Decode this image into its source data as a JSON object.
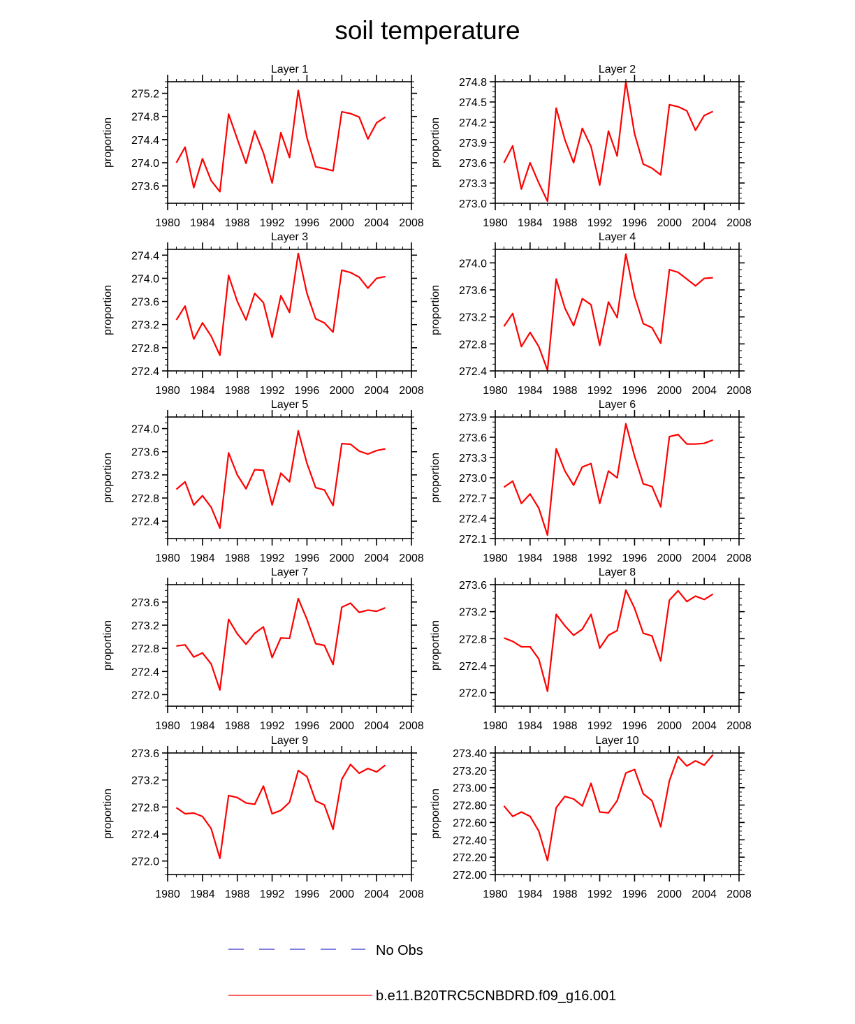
{
  "title": "soil temperature",
  "colors": {
    "model": "#ff0000",
    "obs": "#3333cc",
    "axis": "#000000"
  },
  "legend": {
    "obs_label": "No Obs",
    "model_label": "b.e11.B20TRC5CNBDRD.f09_g16.001"
  },
  "chart_data": [
    {
      "type": "line",
      "title": "Layer 1",
      "xlabel": "",
      "ylabel": "proportion",
      "xlim": [
        1980,
        2008
      ],
      "xticks": [
        "1980",
        "1984",
        "1988",
        "1992",
        "1996",
        "2000",
        "2004",
        "2008"
      ],
      "ylim": [
        273.3,
        275.4
      ],
      "yticks": [
        "273.6",
        "274.0",
        "274.4",
        "274.8",
        "275.2"
      ],
      "x": [
        1981,
        1982,
        1983,
        1984,
        1985,
        1986,
        1987,
        1988,
        1989,
        1990,
        1991,
        1992,
        1993,
        1994,
        1995,
        1996,
        1997,
        1998,
        1999,
        2000,
        2001,
        2002,
        2003,
        2004,
        2005
      ],
      "series": [
        {
          "name": "b.e11.B20TRC5CNBDRD.f09_g16.001",
          "values": [
            274.0,
            274.27,
            273.57,
            274.07,
            273.69,
            273.5,
            274.84,
            274.41,
            273.99,
            274.55,
            274.17,
            273.65,
            274.52,
            274.09,
            275.25,
            274.43,
            273.93,
            273.9,
            273.86,
            274.88,
            274.85,
            274.79,
            274.41,
            274.69,
            274.79
          ]
        }
      ]
    },
    {
      "type": "line",
      "title": "Layer 2",
      "xlabel": "",
      "ylabel": "proportion",
      "xlim": [
        1980,
        2008
      ],
      "xticks": [
        "1980",
        "1984",
        "1988",
        "1992",
        "1996",
        "2000",
        "2004",
        "2008"
      ],
      "ylim": [
        273.0,
        274.8
      ],
      "yticks": [
        "273.0",
        "273.3",
        "273.6",
        "273.9",
        "274.2",
        "274.5",
        "274.8"
      ],
      "x": [
        1981,
        1982,
        1983,
        1984,
        1985,
        1986,
        1987,
        1988,
        1989,
        1990,
        1991,
        1992,
        1993,
        1994,
        1995,
        1996,
        1997,
        1998,
        1999,
        2000,
        2001,
        2002,
        2003,
        2004,
        2005
      ],
      "series": [
        {
          "name": "b.e11.B20TRC5CNBDRD.f09_g16.001",
          "values": [
            273.6,
            273.85,
            273.21,
            273.6,
            273.3,
            273.03,
            274.41,
            273.94,
            273.6,
            274.11,
            273.84,
            273.27,
            274.07,
            273.7,
            274.8,
            274.03,
            273.58,
            273.52,
            273.42,
            274.46,
            274.43,
            274.37,
            274.08,
            274.3,
            274.36
          ]
        }
      ]
    },
    {
      "type": "line",
      "title": "Layer 3",
      "xlabel": "",
      "ylabel": "proportion",
      "xlim": [
        1980,
        2008
      ],
      "xticks": [
        "1980",
        "1984",
        "1988",
        "1992",
        "1996",
        "2000",
        "2004",
        "2008"
      ],
      "ylim": [
        272.4,
        274.5
      ],
      "yticks": [
        "272.4",
        "272.8",
        "273.2",
        "273.6",
        "274.0",
        "274.4"
      ],
      "x": [
        1981,
        1982,
        1983,
        1984,
        1985,
        1986,
        1987,
        1988,
        1989,
        1990,
        1991,
        1992,
        1993,
        1994,
        1995,
        1996,
        1997,
        1998,
        1999,
        2000,
        2001,
        2002,
        2003,
        2004,
        2005
      ],
      "series": [
        {
          "name": "b.e11.B20TRC5CNBDRD.f09_g16.001",
          "values": [
            273.28,
            273.52,
            272.95,
            273.23,
            273.0,
            272.67,
            274.05,
            273.6,
            273.28,
            273.74,
            273.58,
            272.98,
            273.7,
            273.41,
            274.43,
            273.74,
            273.3,
            273.23,
            273.07,
            274.14,
            274.1,
            274.02,
            273.83,
            274.0,
            274.03
          ]
        }
      ]
    },
    {
      "type": "line",
      "title": "Layer 4",
      "xlabel": "",
      "ylabel": "proportion",
      "xlim": [
        1980,
        2008
      ],
      "xticks": [
        "1980",
        "1984",
        "1988",
        "1992",
        "1996",
        "2000",
        "2004",
        "2008"
      ],
      "ylim": [
        272.4,
        274.2
      ],
      "yticks": [
        "272.4",
        "272.8",
        "273.2",
        "273.6",
        "274.0"
      ],
      "x": [
        1981,
        1982,
        1983,
        1984,
        1985,
        1986,
        1987,
        1988,
        1989,
        1990,
        1991,
        1992,
        1993,
        1994,
        1995,
        1996,
        1997,
        1998,
        1999,
        2000,
        2001,
        2002,
        2003,
        2004,
        2005
      ],
      "series": [
        {
          "name": "b.e11.B20TRC5CNBDRD.f09_g16.001",
          "values": [
            273.06,
            273.25,
            272.76,
            272.97,
            272.76,
            272.41,
            273.76,
            273.33,
            273.07,
            273.47,
            273.38,
            272.78,
            273.42,
            273.19,
            274.13,
            273.51,
            273.1,
            273.04,
            272.81,
            273.9,
            273.86,
            273.76,
            273.66,
            273.77,
            273.78
          ]
        }
      ]
    },
    {
      "type": "line",
      "title": "Layer 5",
      "xlabel": "",
      "ylabel": "proportion",
      "xlim": [
        1980,
        2008
      ],
      "xticks": [
        "1980",
        "1984",
        "1988",
        "1992",
        "1996",
        "2000",
        "2004",
        "2008"
      ],
      "ylim": [
        272.1,
        274.2
      ],
      "yticks": [
        "272.4",
        "272.8",
        "273.2",
        "273.6",
        "274.0"
      ],
      "x": [
        1981,
        1982,
        1983,
        1984,
        1985,
        1986,
        1987,
        1988,
        1989,
        1990,
        1991,
        1992,
        1993,
        1994,
        1995,
        1996,
        1997,
        1998,
        1999,
        2000,
        2001,
        2002,
        2003,
        2004,
        2005
      ],
      "series": [
        {
          "name": "b.e11.B20TRC5CNBDRD.f09_g16.001",
          "values": [
            272.95,
            273.08,
            272.68,
            272.84,
            272.64,
            272.28,
            273.58,
            273.2,
            272.96,
            273.29,
            273.28,
            272.68,
            273.23,
            273.08,
            273.96,
            273.4,
            272.98,
            272.94,
            272.67,
            273.74,
            273.73,
            273.61,
            273.56,
            273.62,
            273.65
          ]
        }
      ]
    },
    {
      "type": "line",
      "title": "Layer 6",
      "xlabel": "",
      "ylabel": "proportion",
      "xlim": [
        1980,
        2008
      ],
      "xticks": [
        "1980",
        "1984",
        "1988",
        "1992",
        "1996",
        "2000",
        "2004",
        "2008"
      ],
      "ylim": [
        272.1,
        273.9
      ],
      "yticks": [
        "272.1",
        "272.4",
        "272.7",
        "273.0",
        "273.3",
        "273.6",
        "273.9"
      ],
      "x": [
        1981,
        1982,
        1983,
        1984,
        1985,
        1986,
        1987,
        1988,
        1989,
        1990,
        1991,
        1992,
        1993,
        1994,
        1995,
        1996,
        1997,
        1998,
        1999,
        2000,
        2001,
        2002,
        2003,
        2004,
        2005
      ],
      "series": [
        {
          "name": "b.e11.B20TRC5CNBDRD.f09_g16.001",
          "values": [
            272.86,
            272.95,
            272.62,
            272.76,
            272.55,
            272.15,
            273.43,
            273.1,
            272.89,
            273.16,
            273.21,
            272.62,
            273.1,
            273.0,
            273.8,
            273.32,
            272.91,
            272.87,
            272.57,
            273.61,
            273.64,
            273.5,
            273.5,
            273.51,
            273.56
          ]
        }
      ]
    },
    {
      "type": "line",
      "title": "Layer 7",
      "xlabel": "",
      "ylabel": "proportion",
      "xlim": [
        1980,
        2008
      ],
      "xticks": [
        "1980",
        "1984",
        "1988",
        "1992",
        "1996",
        "2000",
        "2004",
        "2008"
      ],
      "ylim": [
        271.8,
        273.9
      ],
      "yticks": [
        "272.0",
        "272.4",
        "272.8",
        "273.2",
        "273.6"
      ],
      "x": [
        1981,
        1982,
        1983,
        1984,
        1985,
        1986,
        1987,
        1988,
        1989,
        1990,
        1991,
        1992,
        1993,
        1994,
        1995,
        1996,
        1997,
        1998,
        1999,
        2000,
        2001,
        2002,
        2003,
        2004,
        2005
      ],
      "series": [
        {
          "name": "b.e11.B20TRC5CNBDRD.f09_g16.001",
          "values": [
            272.84,
            272.86,
            272.65,
            272.72,
            272.53,
            272.08,
            273.3,
            273.05,
            272.87,
            273.06,
            273.17,
            272.64,
            272.98,
            272.97,
            273.66,
            273.3,
            272.88,
            272.85,
            272.52,
            273.51,
            273.58,
            273.42,
            273.46,
            273.44,
            273.5
          ]
        }
      ]
    },
    {
      "type": "line",
      "title": "Layer 8",
      "xlabel": "",
      "ylabel": "proportion",
      "xlim": [
        1980,
        2008
      ],
      "xticks": [
        "1980",
        "1984",
        "1988",
        "1992",
        "1996",
        "2000",
        "2004",
        "2008"
      ],
      "ylim": [
        271.8,
        273.6
      ],
      "yticks": [
        "272.0",
        "272.4",
        "272.8",
        "273.2",
        "273.6"
      ],
      "x": [
        1981,
        1982,
        1983,
        1984,
        1985,
        1986,
        1987,
        1988,
        1989,
        1990,
        1991,
        1992,
        1993,
        1994,
        1995,
        1996,
        1997,
        1998,
        1999,
        2000,
        2001,
        2002,
        2003,
        2004,
        2005
      ],
      "series": [
        {
          "name": "b.e11.B20TRC5CNBDRD.f09_g16.001",
          "values": [
            272.81,
            272.76,
            272.68,
            272.68,
            272.5,
            272.02,
            273.16,
            272.99,
            272.85,
            272.94,
            273.16,
            272.66,
            272.85,
            272.92,
            273.52,
            273.25,
            272.88,
            272.84,
            272.47,
            273.37,
            273.51,
            273.35,
            273.43,
            273.38,
            273.46
          ]
        }
      ]
    },
    {
      "type": "line",
      "title": "Layer 9",
      "xlabel": "",
      "ylabel": "proportion",
      "xlim": [
        1980,
        2008
      ],
      "xticks": [
        "1980",
        "1984",
        "1988",
        "1992",
        "1996",
        "2000",
        "2004",
        "2008"
      ],
      "ylim": [
        271.8,
        273.6
      ],
      "yticks": [
        "272.0",
        "272.4",
        "272.8",
        "273.2",
        "273.6"
      ],
      "x": [
        1981,
        1982,
        1983,
        1984,
        1985,
        1986,
        1987,
        1988,
        1989,
        1990,
        1991,
        1992,
        1993,
        1994,
        1995,
        1996,
        1997,
        1998,
        1999,
        2000,
        2001,
        2002,
        2003,
        2004,
        2005
      ],
      "series": [
        {
          "name": "b.e11.B20TRC5CNBDRD.f09_g16.001",
          "values": [
            272.79,
            272.7,
            272.71,
            272.66,
            272.48,
            272.04,
            272.97,
            272.94,
            272.86,
            272.84,
            273.11,
            272.7,
            272.75,
            272.87,
            273.34,
            273.25,
            272.89,
            272.83,
            272.47,
            273.21,
            273.43,
            273.3,
            273.37,
            273.32,
            273.42
          ]
        }
      ]
    },
    {
      "type": "line",
      "title": "Layer 10",
      "xlabel": "",
      "ylabel": "proportion",
      "xlim": [
        1980,
        2008
      ],
      "xticks": [
        "1980",
        "1984",
        "1988",
        "1992",
        "1996",
        "2000",
        "2004",
        "2008"
      ],
      "ylim": [
        272.0,
        273.4
      ],
      "yticks": [
        "272.00",
        "272.20",
        "272.40",
        "272.60",
        "272.80",
        "273.00",
        "273.20",
        "273.40"
      ],
      "x": [
        1981,
        1982,
        1983,
        1984,
        1985,
        1986,
        1987,
        1988,
        1989,
        1990,
        1991,
        1992,
        1993,
        1994,
        1995,
        1996,
        1997,
        1998,
        1999,
        2000,
        2001,
        2002,
        2003,
        2004,
        2005
      ],
      "series": [
        {
          "name": "b.e11.B20TRC5CNBDRD.f09_g16.001",
          "values": [
            272.79,
            272.67,
            272.72,
            272.67,
            272.5,
            272.16,
            272.77,
            272.9,
            272.87,
            272.79,
            273.05,
            272.72,
            272.71,
            272.85,
            273.17,
            273.21,
            272.93,
            272.85,
            272.55,
            273.08,
            273.36,
            273.25,
            273.31,
            273.26,
            273.38
          ]
        }
      ]
    }
  ]
}
